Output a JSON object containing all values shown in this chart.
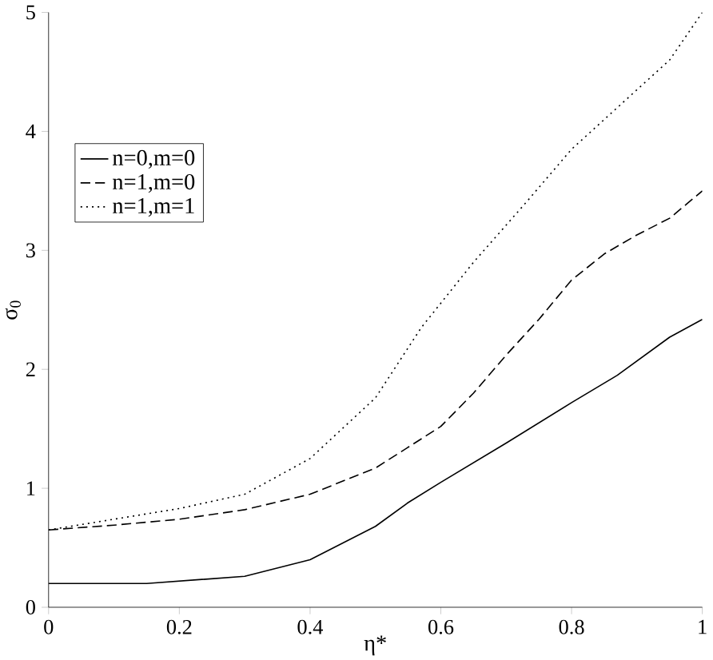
{
  "chart_data": {
    "type": "line",
    "xlabel": "η*",
    "ylabel": "σ$_{0}$",
    "xlim": [
      0,
      1
    ],
    "ylim": [
      0,
      5
    ],
    "xticks": [
      0,
      0.2,
      0.4,
      0.6,
      0.8,
      1
    ],
    "yticks": [
      0,
      1,
      2,
      3,
      4,
      5
    ],
    "grid": false,
    "legend": "top left",
    "marker": "none",
    "series": [
      {
        "name": "n=0,m=0",
        "color": "#000000",
        "line_style": "solid",
        "x": [
          0,
          0.15,
          0.3,
          0.4,
          0.5,
          0.55,
          0.6,
          0.7,
          0.8,
          0.87,
          0.95,
          1
        ],
        "values": [
          0.2,
          0.2,
          0.26,
          0.4,
          0.68,
          0.88,
          1.05,
          1.38,
          1.72,
          1.95,
          2.27,
          2.42
        ]
      },
      {
        "name": "n=1,m=0",
        "color": "#000000",
        "line_style": "dashed",
        "x": [
          0,
          0.1,
          0.2,
          0.3,
          0.4,
          0.5,
          0.6,
          0.65,
          0.7,
          0.75,
          0.8,
          0.85,
          0.9,
          0.95,
          1
        ],
        "values": [
          0.65,
          0.69,
          0.74,
          0.82,
          0.95,
          1.17,
          1.52,
          1.8,
          2.12,
          2.42,
          2.75,
          2.97,
          3.13,
          3.27,
          3.5
        ]
      },
      {
        "name": "n=1,m=1",
        "color": "#000000",
        "line_style": "dotted",
        "x": [
          0,
          0.1,
          0.2,
          0.3,
          0.4,
          0.5,
          0.57,
          0.65,
          0.73,
          0.8,
          0.87,
          0.95,
          1
        ],
        "values": [
          0.65,
          0.74,
          0.83,
          0.95,
          1.25,
          1.76,
          2.35,
          2.9,
          3.4,
          3.85,
          4.2,
          4.6,
          5.0
        ]
      }
    ]
  }
}
